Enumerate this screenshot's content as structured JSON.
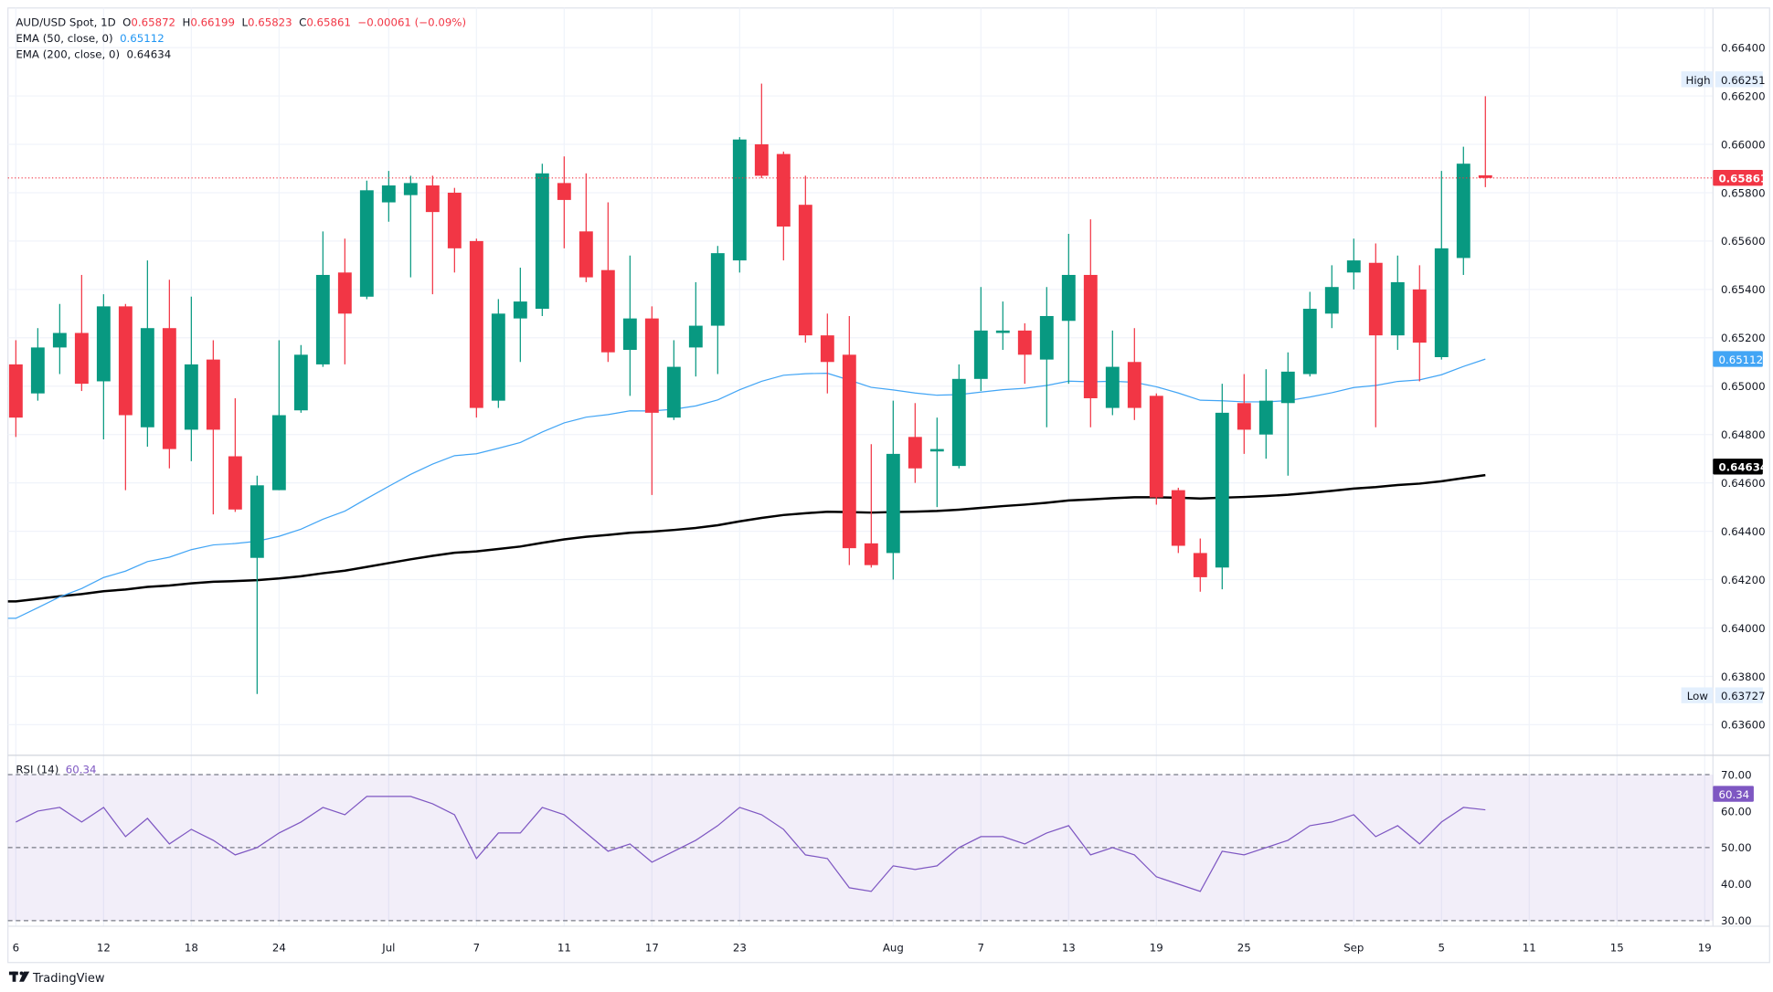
{
  "header": {
    "symbol": "AUD/USD Spot, 1D",
    "o_label": "O",
    "o": "0.65872",
    "h_label": "H",
    "h": "0.66199",
    "l_label": "L",
    "l": "0.65823",
    "c_label": "C",
    "c": "0.65861",
    "change": "−0.00061 (−0.09%)",
    "ema50_label": "EMA (50, close, 0)",
    "ema50_value": "0.65112",
    "ema200_label": "EMA (200, close, 0)",
    "ema200_value": "0.64634",
    "rsi_label": "RSI (14)",
    "rsi_value": "60.34"
  },
  "markers": {
    "high_label": "High",
    "high_value": "0.66251",
    "low_label": "Low",
    "low_value": "0.63727",
    "last_price": "0.65861",
    "ema50_price": "0.65112",
    "ema200_price": "0.64634",
    "rsi_last": "60.34"
  },
  "branding": {
    "logo_text": "TradingView"
  },
  "colors": {
    "up": "#089981",
    "down": "#f23645",
    "ema50": "#42a5f5",
    "ema200": "#000000",
    "rsi": "#7e57c2"
  },
  "chart_data": {
    "type": "candlestick",
    "title": "AUD/USD Spot, 1D",
    "ylim": [
      0.635,
      0.665
    ],
    "y_ticks": [
      "0.66400",
      "0.66200",
      "0.66000",
      "0.65800",
      "0.65600",
      "0.65400",
      "0.65200",
      "0.65000",
      "0.64800",
      "0.64600",
      "0.64400",
      "0.64200",
      "0.64000",
      "0.63800",
      "0.63600"
    ],
    "x_ticks": [
      {
        "label": "6",
        "index": 0
      },
      {
        "label": "12",
        "index": 4
      },
      {
        "label": "18",
        "index": 8
      },
      {
        "label": "24",
        "index": 12
      },
      {
        "label": "Jul",
        "index": 17
      },
      {
        "label": "7",
        "index": 21
      },
      {
        "label": "11",
        "index": 25
      },
      {
        "label": "17",
        "index": 29
      },
      {
        "label": "23",
        "index": 33
      },
      {
        "label": "Aug",
        "index": 40
      },
      {
        "label": "7",
        "index": 44
      },
      {
        "label": "13",
        "index": 48
      },
      {
        "label": "19",
        "index": 52
      },
      {
        "label": "25",
        "index": 56
      },
      {
        "label": "Sep",
        "index": 61
      },
      {
        "label": "5",
        "index": 65
      },
      {
        "label": "11",
        "index": 69
      },
      {
        "label": "15",
        "index": 73
      },
      {
        "label": "19",
        "index": 77
      }
    ],
    "ohlc": [
      [
        0.6509,
        0.6519,
        0.6479,
        0.6487
      ],
      [
        0.6497,
        0.6524,
        0.6494,
        0.6516
      ],
      [
        0.6516,
        0.6534,
        0.6505,
        0.6522
      ],
      [
        0.6522,
        0.6546,
        0.6498,
        0.6501
      ],
      [
        0.6502,
        0.6538,
        0.6478,
        0.6533
      ],
      [
        0.6533,
        0.6534,
        0.6457,
        0.6488
      ],
      [
        0.6483,
        0.6552,
        0.6475,
        0.6524
      ],
      [
        0.6524,
        0.6544,
        0.6466,
        0.6474
      ],
      [
        0.6482,
        0.6537,
        0.6469,
        0.6509
      ],
      [
        0.6511,
        0.6519,
        0.6447,
        0.6482
      ],
      [
        0.6471,
        0.6495,
        0.6448,
        0.6449
      ],
      [
        0.6429,
        0.6463,
        0.63727,
        0.6459
      ],
      [
        0.6457,
        0.6519,
        0.6457,
        0.6488
      ],
      [
        0.649,
        0.6517,
        0.6489,
        0.6513
      ],
      [
        0.6509,
        0.6564,
        0.6508,
        0.6546
      ],
      [
        0.6547,
        0.6561,
        0.6509,
        0.653
      ],
      [
        0.6537,
        0.6585,
        0.6536,
        0.6581
      ],
      [
        0.6576,
        0.6589,
        0.6568,
        0.6583
      ],
      [
        0.6579,
        0.6587,
        0.6545,
        0.6584
      ],
      [
        0.6583,
        0.6587,
        0.6538,
        0.6572
      ],
      [
        0.658,
        0.6582,
        0.6547,
        0.6557
      ],
      [
        0.656,
        0.6561,
        0.6487,
        0.6491
      ],
      [
        0.6494,
        0.6536,
        0.6491,
        0.653
      ],
      [
        0.6528,
        0.6549,
        0.651,
        0.6535
      ],
      [
        0.6532,
        0.6592,
        0.6529,
        0.6588
      ],
      [
        0.6584,
        0.6595,
        0.6557,
        0.6577
      ],
      [
        0.6564,
        0.6588,
        0.6543,
        0.6545
      ],
      [
        0.6548,
        0.6576,
        0.651,
        0.6514
      ],
      [
        0.6515,
        0.6554,
        0.6496,
        0.6528
      ],
      [
        0.6528,
        0.6533,
        0.6455,
        0.6489
      ],
      [
        0.6487,
        0.6519,
        0.6486,
        0.6508
      ],
      [
        0.6516,
        0.6543,
        0.6504,
        0.6525
      ],
      [
        0.6525,
        0.6558,
        0.6505,
        0.6555
      ],
      [
        0.6552,
        0.6603,
        0.6547,
        0.6602
      ],
      [
        0.66,
        0.66251,
        0.6586,
        0.6587
      ],
      [
        0.6596,
        0.6597,
        0.6552,
        0.6566
      ],
      [
        0.6575,
        0.6587,
        0.6518,
        0.6521
      ],
      [
        0.6521,
        0.653,
        0.6497,
        0.651
      ],
      [
        0.6513,
        0.6529,
        0.6426,
        0.6433
      ],
      [
        0.6435,
        0.6476,
        0.6425,
        0.6426
      ],
      [
        0.6431,
        0.6494,
        0.642,
        0.6472
      ],
      [
        0.6479,
        0.6493,
        0.646,
        0.6466
      ],
      [
        0.6473,
        0.6487,
        0.645,
        0.6474
      ],
      [
        0.6467,
        0.6509,
        0.6466,
        0.6503
      ],
      [
        0.6503,
        0.6541,
        0.6498,
        0.6523
      ],
      [
        0.6522,
        0.6535,
        0.6515,
        0.6523
      ],
      [
        0.6523,
        0.6526,
        0.6501,
        0.6513
      ],
      [
        0.6511,
        0.6541,
        0.6483,
        0.6529
      ],
      [
        0.6527,
        0.6563,
        0.6501,
        0.6546
      ],
      [
        0.6546,
        0.6569,
        0.6483,
        0.6495
      ],
      [
        0.6491,
        0.6523,
        0.6488,
        0.6508
      ],
      [
        0.651,
        0.6524,
        0.6486,
        0.6491
      ],
      [
        0.6496,
        0.6497,
        0.6451,
        0.6454
      ],
      [
        0.6457,
        0.6458,
        0.6431,
        0.6434
      ],
      [
        0.6431,
        0.6437,
        0.6415,
        0.6421
      ],
      [
        0.6425,
        0.6501,
        0.6416,
        0.6489
      ],
      [
        0.6493,
        0.6505,
        0.6472,
        0.6482
      ],
      [
        0.648,
        0.6507,
        0.647,
        0.6494
      ],
      [
        0.6493,
        0.6514,
        0.6463,
        0.6506
      ],
      [
        0.6505,
        0.6539,
        0.6504,
        0.6532
      ],
      [
        0.653,
        0.655,
        0.6524,
        0.6541
      ],
      [
        0.6547,
        0.6561,
        0.654,
        0.6552
      ],
      [
        0.6551,
        0.6559,
        0.6483,
        0.6521
      ],
      [
        0.6521,
        0.6554,
        0.6515,
        0.6543
      ],
      [
        0.654,
        0.655,
        0.6502,
        0.6518
      ],
      [
        0.6512,
        0.6589,
        0.6511,
        0.6557
      ],
      [
        0.6553,
        0.6599,
        0.6546,
        0.6592
      ],
      [
        0.65872,
        0.66199,
        0.65823,
        0.65861
      ]
    ],
    "ema": [
      {
        "name": "EMA (50, close, 0)",
        "period": 50,
        "first_value": 0.6404,
        "last_value": 0.65112
      },
      {
        "name": "EMA (200, close, 0)",
        "period": 200,
        "first_value": 0.6411,
        "last_value": 0.64634
      }
    ],
    "rsi": {
      "name": "RSI (14)",
      "ylim": [
        30,
        70
      ],
      "levels": [
        30,
        50,
        70
      ],
      "y_ticks": [
        "70.00",
        "60.00",
        "50.00",
        "40.00",
        "30.00"
      ],
      "values": [
        57,
        60,
        61,
        57,
        61,
        53,
        58,
        51,
        55,
        52,
        48,
        50,
        54,
        57,
        61,
        59,
        64,
        64,
        64,
        62,
        59,
        47,
        54,
        54,
        61,
        59,
        54,
        49,
        51,
        46,
        49,
        52,
        56,
        61,
        59,
        55,
        48,
        47,
        39,
        38,
        45,
        44,
        45,
        50,
        53,
        53,
        51,
        54,
        56,
        48,
        50,
        48,
        42,
        40,
        38,
        49,
        48,
        50,
        52,
        56,
        57,
        59,
        53,
        56,
        51,
        57,
        61,
        60.34
      ]
    }
  }
}
